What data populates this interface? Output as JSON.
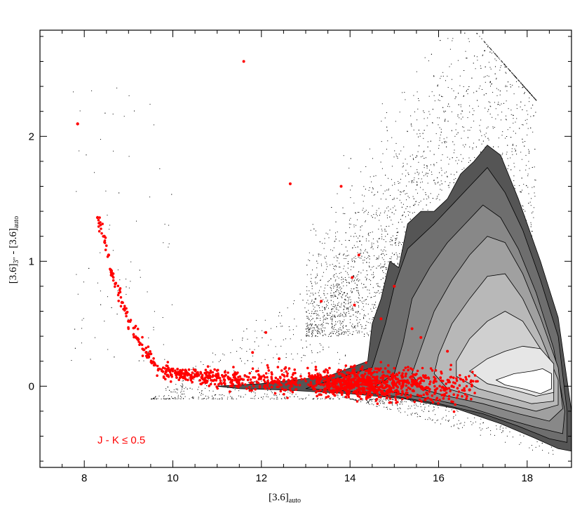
{
  "chart_data": {
    "type": "scatter",
    "xlabel": {
      "main": "[3.6]",
      "sub": "auto"
    },
    "ylabel": {
      "part1": "[3.6]",
      "sub1": "3″",
      "part2": " - [3.6]",
      "sub2": "auto"
    },
    "xlim": [
      7,
      19
    ],
    "ylim": [
      -0.65,
      2.85
    ],
    "x_ticks": [
      8,
      10,
      12,
      14,
      16,
      18
    ],
    "y_ticks": [
      0,
      1,
      2
    ],
    "x_tick_labels": [
      "8",
      "10",
      "12",
      "14",
      "16",
      "18"
    ],
    "y_tick_labels": [
      "0",
      "1",
      "2"
    ],
    "annotation": "J - K ≤ 0.5",
    "grid": false,
    "colors": {
      "background_points": "#000000",
      "highlight_points": "#ff0000",
      "contour_levels": [
        "#555555",
        "#6e6e6e",
        "#888888",
        "#a0a0a0",
        "#b8b8b8",
        "#d0d0d0",
        "#e6e6e6",
        "#ffffff"
      ]
    },
    "density_contours": [
      [
        [
          14.5,
          0.5
        ],
        [
          14.7,
          0.7
        ],
        [
          14.9,
          1.0
        ],
        [
          15.1,
          0.95
        ],
        [
          15.3,
          1.3
        ],
        [
          15.6,
          1.4
        ],
        [
          15.9,
          1.4
        ],
        [
          16.2,
          1.5
        ],
        [
          16.5,
          1.7
        ],
        [
          16.8,
          1.8
        ],
        [
          17.1,
          1.93
        ],
        [
          17.4,
          1.85
        ],
        [
          17.8,
          1.5
        ],
        [
          18.3,
          1.0
        ],
        [
          18.7,
          0.55
        ],
        [
          19.0,
          -0.2
        ],
        [
          19.0,
          -0.52
        ],
        [
          18.7,
          -0.5
        ],
        [
          18.2,
          -0.42
        ],
        [
          17.4,
          -0.3
        ],
        [
          16.4,
          -0.18
        ],
        [
          15.2,
          -0.1
        ],
        [
          14.0,
          -0.06
        ],
        [
          12.5,
          -0.03
        ],
        [
          11.5,
          -0.02
        ],
        [
          11.0,
          0.0
        ],
        [
          12.0,
          0.02
        ],
        [
          13.5,
          0.08
        ],
        [
          14.4,
          0.2
        ]
      ],
      [
        [
          14.8,
          0.5
        ],
        [
          15.0,
          0.8
        ],
        [
          15.3,
          1.1
        ],
        [
          15.6,
          1.2
        ],
        [
          15.9,
          1.3
        ],
        [
          16.3,
          1.45
        ],
        [
          16.7,
          1.6
        ],
        [
          17.1,
          1.75
        ],
        [
          17.5,
          1.55
        ],
        [
          17.9,
          1.25
        ],
        [
          18.3,
          0.85
        ],
        [
          18.7,
          0.4
        ],
        [
          18.9,
          -0.2
        ],
        [
          18.9,
          -0.45
        ],
        [
          18.5,
          -0.42
        ],
        [
          17.8,
          -0.32
        ],
        [
          17.0,
          -0.22
        ],
        [
          16.0,
          -0.14
        ],
        [
          15.0,
          -0.08
        ],
        [
          14.0,
          -0.04
        ],
        [
          13.0,
          -0.02
        ],
        [
          13.5,
          0.04
        ],
        [
          14.5,
          0.15
        ]
      ],
      [
        [
          15.2,
          0.35
        ],
        [
          15.4,
          0.7
        ],
        [
          15.8,
          0.95
        ],
        [
          16.2,
          1.15
        ],
        [
          16.6,
          1.3
        ],
        [
          17.0,
          1.45
        ],
        [
          17.4,
          1.35
        ],
        [
          17.8,
          1.1
        ],
        [
          18.2,
          0.75
        ],
        [
          18.6,
          0.3
        ],
        [
          18.85,
          -0.2
        ],
        [
          18.8,
          -0.38
        ],
        [
          18.2,
          -0.33
        ],
        [
          17.4,
          -0.25
        ],
        [
          16.6,
          -0.16
        ],
        [
          15.8,
          -0.1
        ],
        [
          15.0,
          -0.05
        ],
        [
          14.5,
          -0.02
        ],
        [
          15.0,
          0.1
        ]
      ],
      [
        [
          15.6,
          0.3
        ],
        [
          15.9,
          0.6
        ],
        [
          16.3,
          0.85
        ],
        [
          16.7,
          1.05
        ],
        [
          17.1,
          1.2
        ],
        [
          17.5,
          1.15
        ],
        [
          17.9,
          0.9
        ],
        [
          18.3,
          0.55
        ],
        [
          18.7,
          0.15
        ],
        [
          18.8,
          -0.18
        ],
        [
          18.5,
          -0.28
        ],
        [
          17.8,
          -0.22
        ],
        [
          17.0,
          -0.14
        ],
        [
          16.2,
          -0.08
        ],
        [
          15.6,
          -0.02
        ],
        [
          15.4,
          0.1
        ]
      ],
      [
        [
          16.0,
          0.25
        ],
        [
          16.3,
          0.5
        ],
        [
          16.7,
          0.7
        ],
        [
          17.1,
          0.88
        ],
        [
          17.5,
          0.9
        ],
        [
          17.9,
          0.7
        ],
        [
          18.3,
          0.4
        ],
        [
          18.7,
          0.05
        ],
        [
          18.7,
          -0.15
        ],
        [
          18.2,
          -0.2
        ],
        [
          17.5,
          -0.14
        ],
        [
          16.8,
          -0.08
        ],
        [
          16.2,
          -0.02
        ],
        [
          15.9,
          0.1
        ]
      ],
      [
        [
          16.4,
          0.2
        ],
        [
          16.7,
          0.38
        ],
        [
          17.1,
          0.52
        ],
        [
          17.5,
          0.6
        ],
        [
          17.9,
          0.52
        ],
        [
          18.3,
          0.3
        ],
        [
          18.6,
          0.05
        ],
        [
          18.6,
          -0.12
        ],
        [
          18.1,
          -0.14
        ],
        [
          17.5,
          -0.08
        ],
        [
          16.9,
          -0.02
        ],
        [
          16.4,
          0.08
        ]
      ],
      [
        [
          16.7,
          0.12
        ],
        [
          17.1,
          0.22
        ],
        [
          17.5,
          0.28
        ],
        [
          17.9,
          0.32
        ],
        [
          18.3,
          0.3
        ],
        [
          18.6,
          0.18
        ],
        [
          18.6,
          -0.05
        ],
        [
          18.2,
          -0.08
        ],
        [
          17.6,
          -0.02
        ],
        [
          17.1,
          0.02
        ]
      ],
      [
        [
          17.3,
          0.05
        ],
        [
          17.7,
          0.1
        ],
        [
          18.1,
          0.12
        ],
        [
          18.35,
          0.14
        ],
        [
          18.55,
          0.1
        ],
        [
          18.55,
          -0.02
        ],
        [
          18.3,
          -0.06
        ],
        [
          17.9,
          -0.02
        ],
        [
          17.5,
          0.01
        ]
      ]
    ],
    "highlight_series_curve": [
      [
        7.85,
        2.1
      ],
      [
        8.3,
        1.35
      ],
      [
        8.45,
        1.2
      ],
      [
        8.55,
        1.05
      ],
      [
        8.6,
        0.93
      ],
      [
        8.7,
        0.82
      ],
      [
        8.85,
        0.67
      ],
      [
        9.0,
        0.52
      ],
      [
        9.2,
        0.38
      ],
      [
        9.4,
        0.27
      ],
      [
        9.6,
        0.17
      ],
      [
        9.85,
        0.12
      ],
      [
        10.2,
        0.1
      ],
      [
        10.8,
        0.07
      ],
      [
        11.5,
        0.05
      ],
      [
        12.5,
        0.04
      ],
      [
        13.5,
        0.03
      ],
      [
        14.5,
        0.02
      ],
      [
        15.5,
        0.01
      ],
      [
        16.3,
        0.0
      ],
      [
        16.7,
        -0.03
      ]
    ],
    "highlight_outliers": [
      [
        11.6,
        2.6
      ],
      [
        12.65,
        1.62
      ],
      [
        13.8,
        1.6
      ],
      [
        14.2,
        1.05
      ],
      [
        14.05,
        0.87
      ],
      [
        14.1,
        0.65
      ],
      [
        15.0,
        0.8
      ],
      [
        14.7,
        0.54
      ],
      [
        13.35,
        0.68
      ],
      [
        12.1,
        0.43
      ],
      [
        11.8,
        0.27
      ],
      [
        12.4,
        0.22
      ],
      [
        15.4,
        0.46
      ],
      [
        15.6,
        0.39
      ],
      [
        16.2,
        0.28
      ]
    ]
  }
}
